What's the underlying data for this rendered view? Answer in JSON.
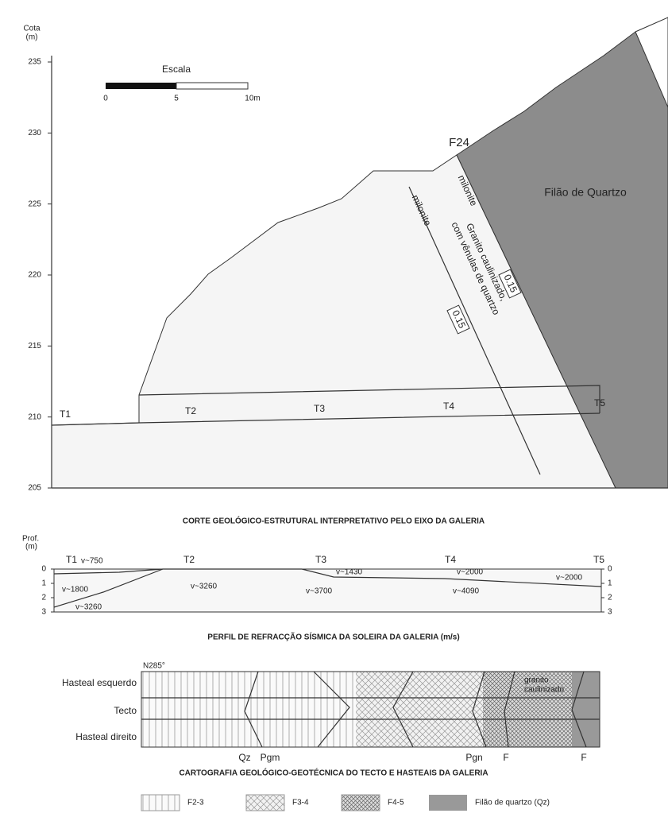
{
  "section": {
    "elevation_axis": {
      "title": [
        "Cota",
        "(m)"
      ],
      "ticks": [
        235,
        230,
        225,
        220,
        215,
        210,
        205
      ]
    },
    "scale": {
      "title": "Escala",
      "labels": [
        "0",
        "5",
        "10m"
      ]
    },
    "fault": "F24",
    "vein": "Filão de Quartzo",
    "milonite": [
      "milonite",
      "milonite"
    ],
    "granite": [
      "Granito caulinizado,",
      "com vênulas de quartzo"
    ],
    "thickness": [
      "0.15",
      "0.15"
    ],
    "stations": [
      "T1",
      "T2",
      "T3",
      "T4",
      "T5"
    ],
    "caption": "CORTE GEOLÓGICO-ESTRUTURAL INTERPRETATIVO PELO EIXO DA GALERIA"
  },
  "seismic": {
    "depth_axis": {
      "title": [
        "Prof.",
        "(m)"
      ],
      "ticks": [
        0,
        1,
        2,
        3
      ]
    },
    "stations": [
      "T1",
      "T2",
      "T3",
      "T4",
      "T5"
    ],
    "velocities": [
      "v~750",
      "v~1800",
      "v~3260",
      "v~3260",
      "v~1430",
      "v~3700",
      "v~2000",
      "v~4090",
      "v~2000"
    ],
    "caption": "PERFIL DE REFRACÇÃO SÍSMICA DA SOLEIRA DA GALERIA (m/s)"
  },
  "mapping": {
    "orientation": "N285°",
    "rows": [
      "Hasteal esquerdo",
      "Tecto",
      "Hasteal direito"
    ],
    "granite": [
      "granito",
      "caulinizado"
    ],
    "markers": [
      "Qz",
      "Pgm",
      "Pgn",
      "F",
      "F"
    ],
    "caption": "CARTOGRAFIA GEOLÓGICO-GEOTÉCNICA DO TECTO E HASTEAIS DA GALERIA"
  },
  "legend": [
    "F2-3",
    "F3-4",
    "F4-5",
    "Filão de quartzo (Qz)"
  ]
}
